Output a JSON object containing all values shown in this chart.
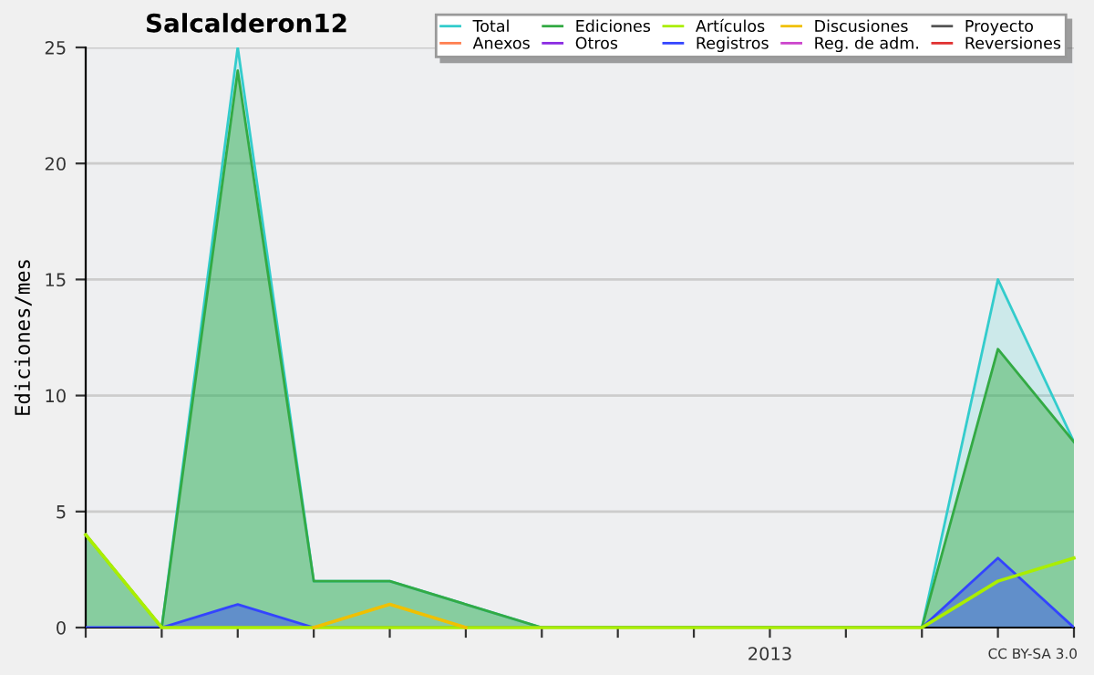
{
  "chart_data": {
    "type": "line",
    "title": "Salcalderon12",
    "ylabel": "Ediciones/mes",
    "categories": [
      null,
      null,
      null,
      null,
      null,
      null,
      null,
      null,
      null,
      "2013",
      null,
      null,
      null,
      null
    ],
    "series": [
      {
        "name": "Total",
        "type": "area",
        "color": "#33cccc",
        "values": [
          4,
          0,
          25,
          2,
          2,
          1,
          0,
          0,
          0,
          0,
          0,
          0,
          15,
          8
        ]
      },
      {
        "name": "Anexos",
        "color": "#ff7f50",
        "values": [
          null,
          null,
          null,
          null,
          null,
          null,
          null,
          null,
          null,
          null,
          null,
          null,
          null,
          null
        ]
      },
      {
        "name": "Ediciones",
        "type": "area",
        "color": "#33aa44",
        "values": [
          4,
          0,
          24,
          2,
          2,
          1,
          0,
          0,
          0,
          0,
          0,
          0,
          12,
          8
        ]
      },
      {
        "name": "Otros",
        "color": "#8a2be2",
        "values": [
          null,
          null,
          null,
          null,
          null,
          null,
          null,
          null,
          null,
          null,
          null,
          null,
          null,
          null
        ]
      },
      {
        "name": "Artículos",
        "color": "#aaee00",
        "values": [
          4,
          0,
          0,
          0,
          0,
          0,
          0,
          0,
          0,
          0,
          0,
          0,
          2,
          3
        ]
      },
      {
        "name": "Registros",
        "type": "area",
        "color": "#3344ff",
        "values": [
          0,
          0,
          1,
          0,
          0,
          0,
          0,
          0,
          0,
          0,
          0,
          0,
          3,
          0
        ]
      },
      {
        "name": "Discusiones",
        "color": "#f0c000",
        "values": [
          null,
          null,
          null,
          0,
          1,
          0,
          null,
          null,
          null,
          null,
          null,
          null,
          null,
          null
        ]
      },
      {
        "name": "Reg. de adm.",
        "color": "#cc44cc",
        "values": [
          null,
          null,
          null,
          null,
          null,
          null,
          null,
          null,
          null,
          null,
          null,
          null,
          null,
          null
        ]
      },
      {
        "name": "Proyecto",
        "color": "#555555",
        "values": [
          null,
          null,
          null,
          null,
          null,
          null,
          null,
          null,
          null,
          null,
          null,
          null,
          null,
          null
        ]
      },
      {
        "name": "Reversiones",
        "color": "#e03030",
        "values": [
          null,
          null,
          null,
          null,
          null,
          null,
          null,
          null,
          null,
          null,
          null,
          null,
          null,
          null
        ]
      }
    ],
    "ylim": [
      0,
      25
    ],
    "yticks": [
      0,
      5,
      10,
      15,
      20,
      25
    ],
    "grid": "y",
    "legend": "top right",
    "annotations": [
      "CC BY-SA 3.0"
    ]
  }
}
